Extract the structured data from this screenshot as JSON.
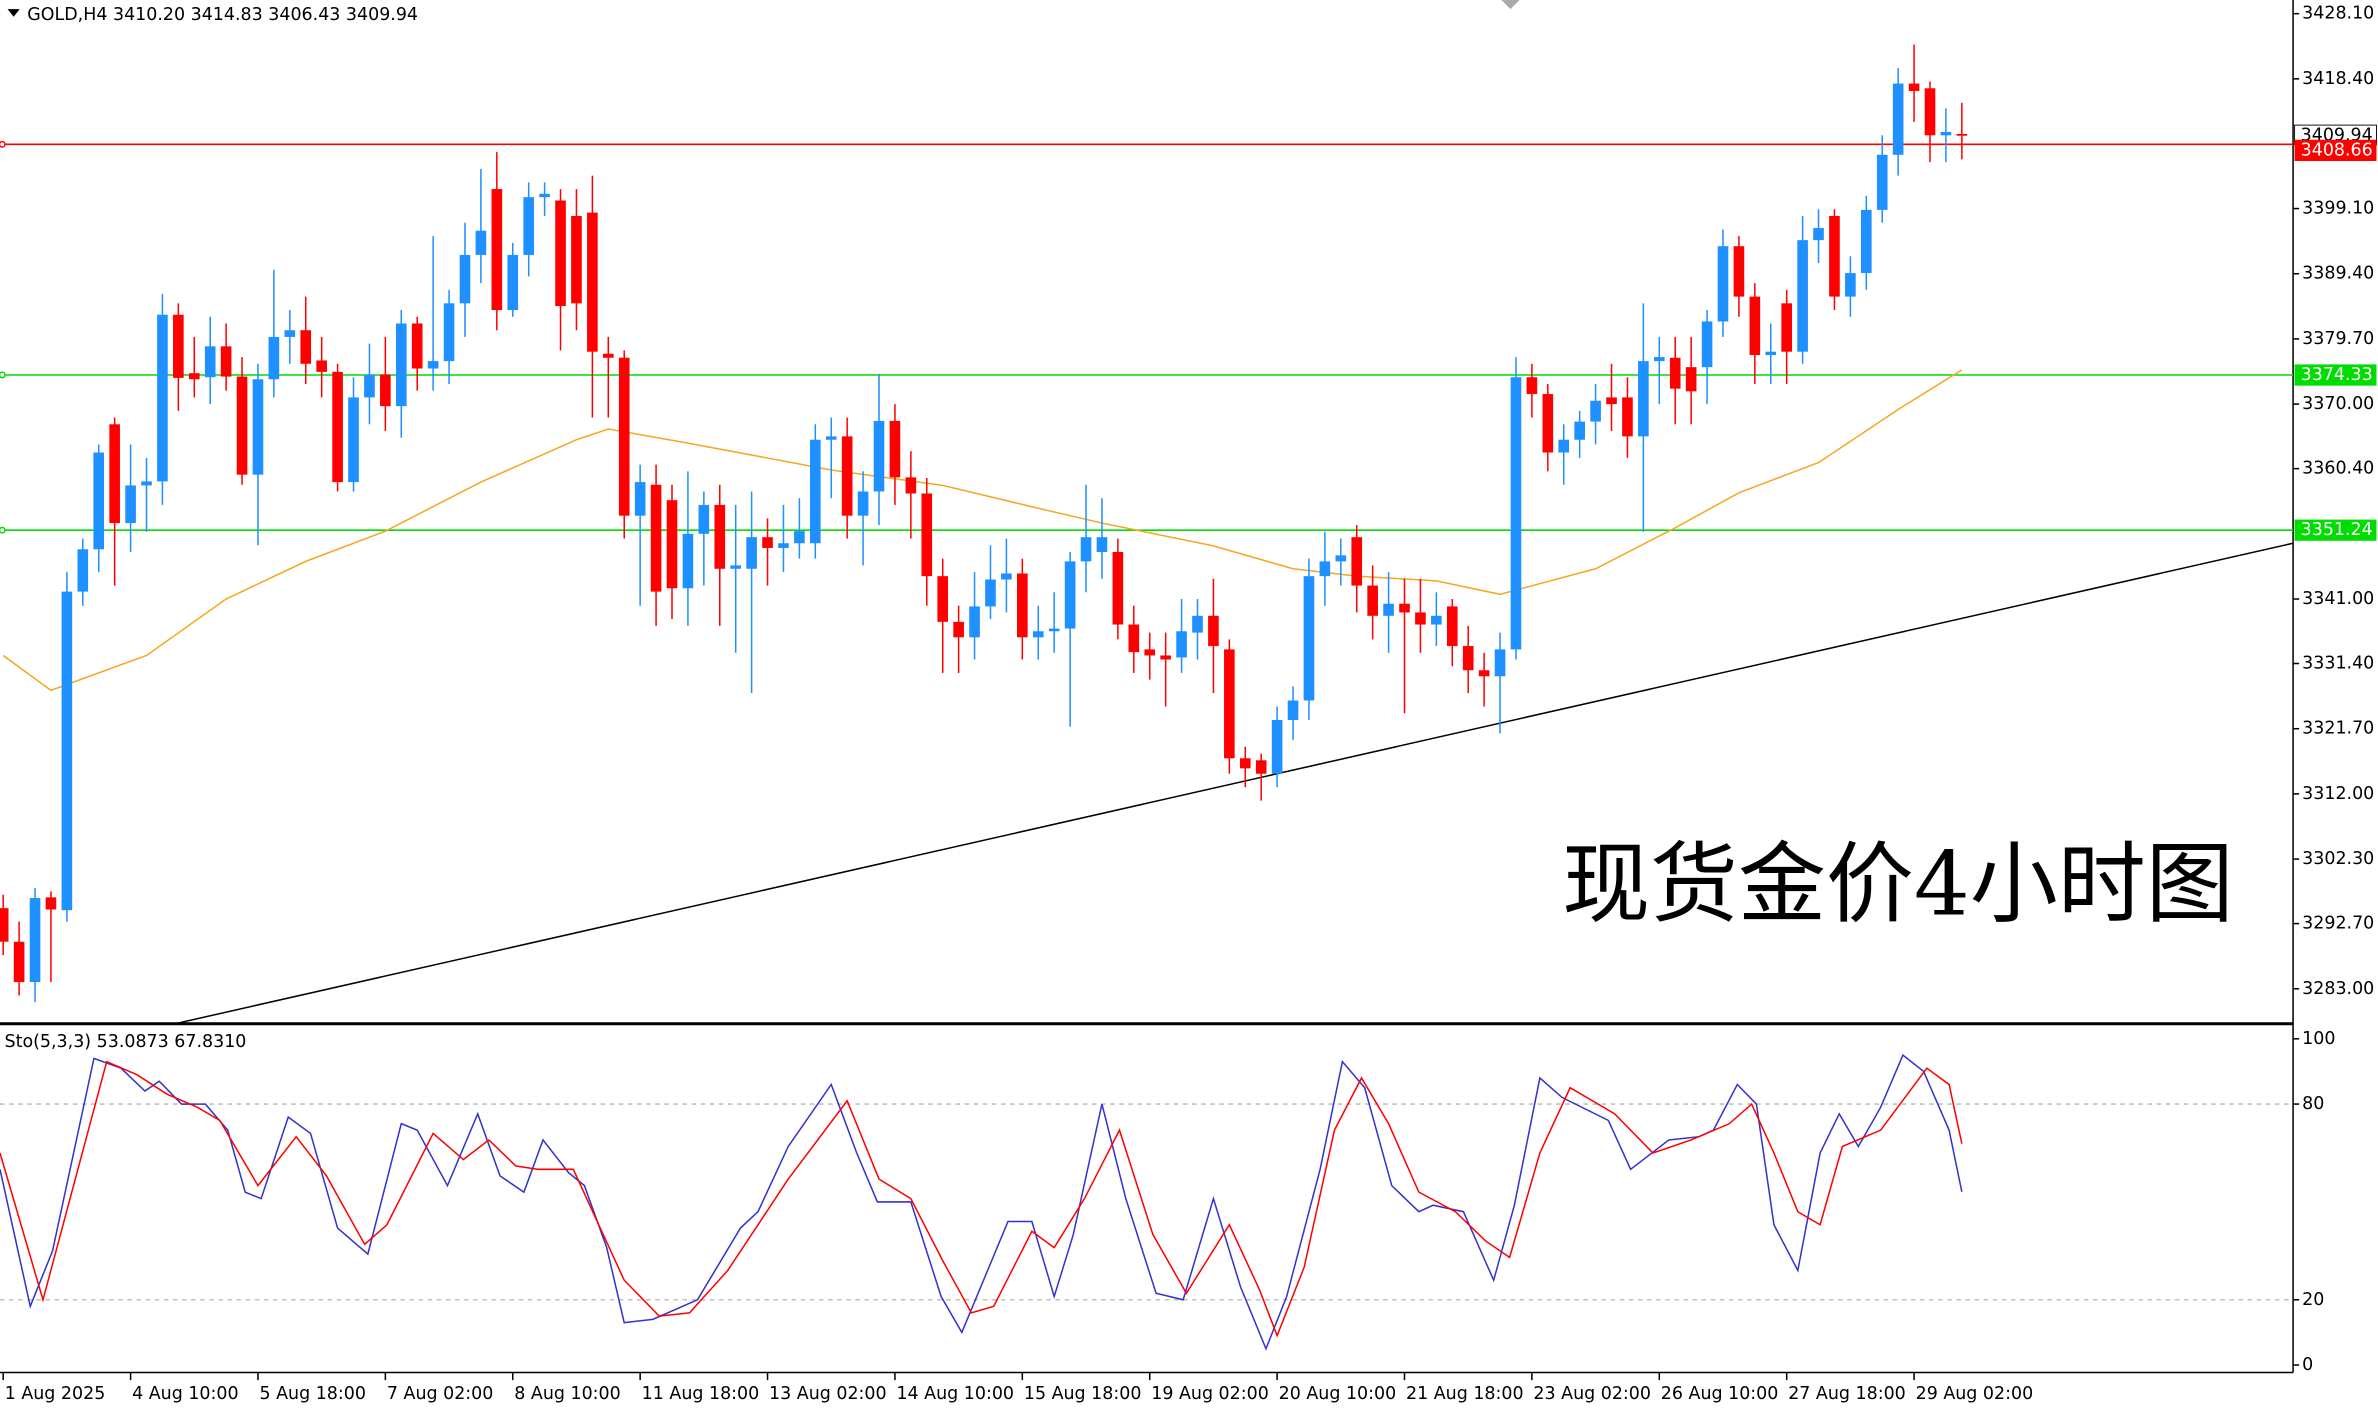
{
  "chart_data": [
    {
      "type": "candlestick",
      "title": "GOLD,H4  3410.20 3414.83 3406.43 3409.94",
      "annotation": "现货金价4小时图",
      "open": [
        3295,
        3290,
        3284,
        3296.6,
        3294.7,
        3342.1,
        3348.4,
        3367,
        3352.3,
        3357.9,
        3358.5,
        3383.3,
        3374.6,
        3374,
        3378.6,
        3374.1,
        3359.5,
        3373.7,
        3380,
        3381,
        3376.5,
        3374.8,
        3358.4,
        3371,
        3374.4,
        3369.7,
        3382,
        3375.3,
        3376.4,
        3385,
        3392.2,
        3402,
        3384,
        3392.2,
        3400.8,
        3400.3,
        3398,
        3398.5,
        3377.5,
        3376.9,
        3353.4,
        3358,
        3355.7,
        3342.6,
        3350.7,
        3355,
        3345.5,
        3345.5,
        3350.2,
        3348.6,
        3349.3,
        3349.3,
        3364.7,
        3365.2,
        3353.4,
        3357,
        3367.5,
        3359.1,
        3356.7,
        3344.4,
        3337.6,
        3335.3,
        3339.9,
        3343.9,
        3344.8,
        3335.3,
        3336.2,
        3336.6,
        3346.6,
        3348,
        3348,
        3337.2,
        3333.5,
        3332.6,
        3332.3,
        3336,
        3338.5,
        3333.5,
        3317.3,
        3317,
        3315,
        3323,
        3325.9,
        3344.4,
        3346.6,
        3350.2,
        3343,
        3338.5,
        3340.3,
        3339,
        3337.2,
        3339.9,
        3334,
        3330.4,
        3329.5,
        3333.5,
        3374,
        3371.5,
        3362.8,
        3364.7,
        3367.4,
        3371,
        3371,
        3365.2,
        3376.4,
        3376.9,
        3375.5,
        3375.5,
        3382.3,
        3393.5,
        3386,
        3377.3,
        3385,
        3377.8,
        3394.4,
        3398,
        3386,
        3389.5,
        3398.9,
        3407.1,
        3417.7,
        3417,
        3410,
        3410.2
      ],
      "high": [
        3297,
        3293,
        3298,
        3297.5,
        3345,
        3350,
        3364,
        3368,
        3364,
        3362,
        3386.4,
        3385,
        3380,
        3383,
        3382,
        3377,
        3376,
        3390,
        3384,
        3386,
        3380,
        3376,
        3374,
        3379,
        3380,
        3384,
        3383,
        3395,
        3387,
        3397,
        3405,
        3407.5,
        3394,
        3403,
        3403,
        3402,
        3402,
        3404,
        3380,
        3378,
        3361,
        3361,
        3358,
        3360,
        3357,
        3358,
        3355,
        3357,
        3353,
        3355,
        3356,
        3367,
        3368,
        3368,
        3360,
        3374.5,
        3370,
        3363,
        3359,
        3347,
        3340,
        3345,
        3349,
        3350,
        3347,
        3340,
        3342,
        3348,
        3358,
        3356,
        3350,
        3340,
        3336,
        3336,
        3341,
        3341,
        3344,
        3335,
        3319,
        3318,
        3325,
        3328,
        3347,
        3351,
        3350,
        3352,
        3346,
        3345,
        3344,
        3344,
        3342,
        3341,
        3337,
        3333,
        3336,
        3377,
        3376,
        3373,
        3367,
        3369,
        3373,
        3376,
        3374,
        3385,
        3380,
        3380,
        3380,
        3384,
        3396,
        3395,
        3388,
        3382,
        3387,
        3398,
        3399,
        3399,
        3392,
        3401,
        3410,
        3420,
        3423.5,
        3418,
        3414,
        3414.83
      ],
      "low": [
        3288,
        3282,
        3281,
        3284,
        3293,
        3340,
        3345,
        3343,
        3348,
        3351,
        3355,
        3369,
        3371,
        3370,
        3372,
        3358,
        3349,
        3371,
        3376,
        3373,
        3371,
        3357,
        3357,
        3367,
        3366,
        3365,
        3372,
        3372,
        3373,
        3380,
        3388,
        3381,
        3383,
        3389,
        3398,
        3378,
        3381,
        3368,
        3368,
        3350,
        3340,
        3337,
        3338,
        3337,
        3343,
        3337,
        3333,
        3327,
        3343,
        3345,
        3347,
        3347,
        3356,
        3350,
        3346,
        3352,
        3355,
        3350,
        3340,
        3330,
        3330,
        3332,
        3338,
        3339,
        3332,
        3332,
        3333,
        3322,
        3342,
        3344,
        3335,
        3330,
        3329,
        3325,
        3330,
        3332,
        3327,
        3315,
        3313,
        3311,
        3313,
        3320,
        3323,
        3340,
        3343,
        3339,
        3335,
        3333,
        3324,
        3333,
        3334,
        3331,
        3327,
        3325,
        3321,
        3332,
        3368,
        3360,
        3358,
        3362,
        3364,
        3366,
        3362,
        3351,
        3370,
        3367,
        3367,
        3370,
        3380,
        3383,
        3373,
        3373,
        3373,
        3376,
        3391,
        3384,
        3383,
        3387,
        3397,
        3404,
        3412,
        3406,
        3406,
        3406.43
      ],
      "close": [
        3290,
        3284,
        3296.5,
        3294.8,
        3342.1,
        3348.4,
        3362.8,
        3352.3,
        3357.9,
        3358.5,
        3383.3,
        3373.9,
        3373.7,
        3378.6,
        3374.1,
        3359.5,
        3373.7,
        3380,
        3381,
        3376,
        3374.8,
        3358.4,
        3371,
        3374.4,
        3369.7,
        3382,
        3375.3,
        3376.4,
        3385,
        3392.2,
        3395.8,
        3384,
        3392.2,
        3400.8,
        3401.3,
        3384.6,
        3385,
        3377.8,
        3376.9,
        3353.4,
        3358.4,
        3342.1,
        3342.6,
        3350.7,
        3355,
        3345.5,
        3346,
        3350.2,
        3348.6,
        3349.3,
        3351.1,
        3364.7,
        3365.2,
        3353.4,
        3357,
        3367.5,
        3359.1,
        3356.7,
        3344.4,
        3337.6,
        3335.3,
        3339.9,
        3343.9,
        3344.8,
        3335.3,
        3336.2,
        3336.6,
        3346.6,
        3350.2,
        3350.2,
        3337.2,
        3333.1,
        3332.6,
        3332,
        3336.2,
        3338.5,
        3334,
        3317.3,
        3315.8,
        3315,
        3323,
        3325.9,
        3344.4,
        3346.6,
        3347.5,
        3343,
        3338.5,
        3340.3,
        3339,
        3337.2,
        3338.5,
        3334,
        3330.4,
        3329.5,
        3333.5,
        3374,
        3371.5,
        3362.8,
        3364.7,
        3367.4,
        3370.5,
        3370,
        3365.2,
        3376.4,
        3377,
        3372.3,
        3371.9,
        3382.3,
        3393.5,
        3386,
        3377.3,
        3377.8,
        3377.8,
        3394.4,
        3396.2,
        3386,
        3389.5,
        3398.9,
        3407.1,
        3417.7,
        3416.6,
        3410,
        3410.5,
        3409.94
      ],
      "up_color": "#1e90ff",
      "down_color": "#ff0000",
      "xlim": [
        -0.2,
        143.8
      ],
      "xticks": [
        {
          "value": 0,
          "label": "1 Aug 2025"
        },
        {
          "value": 8,
          "label": "4 Aug 10:00"
        },
        {
          "value": 16,
          "label": "5 Aug 18:00"
        },
        {
          "value": 24,
          "label": "7 Aug 02:00"
        },
        {
          "value": 32,
          "label": "8 Aug 10:00"
        },
        {
          "value": 40,
          "label": "11 Aug 18:00"
        },
        {
          "value": 48,
          "label": "13 Aug 02:00"
        },
        {
          "value": 56,
          "label": "14 Aug 10:00"
        },
        {
          "value": 64,
          "label": "15 Aug 18:00"
        },
        {
          "value": 72,
          "label": "19 Aug 02:00"
        },
        {
          "value": 80,
          "label": "20 Aug 10:00"
        },
        {
          "value": 88,
          "label": "21 Aug 18:00"
        },
        {
          "value": 96,
          "label": "23 Aug 02:00"
        },
        {
          "value": 104,
          "label": "26 Aug 10:00"
        },
        {
          "value": 112,
          "label": "27 Aug 18:00"
        },
        {
          "value": 120,
          "label": "29 Aug 02:00"
        }
      ],
      "ylim": [
        3277.8,
        3430.13
      ],
      "yticks": [
        {
          "value": 3428.1,
          "label": "3428.10"
        },
        {
          "value": 3418.4,
          "label": "3418.40"
        },
        {
          "value": 3399.1,
          "label": "3399.10"
        },
        {
          "value": 3389.4,
          "label": "3389.40"
        },
        {
          "value": 3379.7,
          "label": "3379.70"
        },
        {
          "value": 3370,
          "label": "3370.00"
        },
        {
          "value": 3360.4,
          "label": "3360.40"
        },
        {
          "value": 3341,
          "label": "3341.00"
        },
        {
          "value": 3331.4,
          "label": "3331.40"
        },
        {
          "value": 3321.7,
          "label": "3321.70"
        },
        {
          "value": 3312,
          "label": "3312.00"
        },
        {
          "value": 3302.3,
          "label": "3302.30"
        },
        {
          "value": 3292.7,
          "label": "3292.70"
        },
        {
          "value": 3283,
          "label": "3283.00"
        }
      ],
      "current_price": 3409.94,
      "levels": [
        {
          "value": 3408.66,
          "color": "#ff0000"
        },
        {
          "value": 3374.33,
          "color": "#00dd00"
        },
        {
          "value": 3351.24,
          "color": "#00dd00"
        }
      ],
      "ma": {
        "color": "#f5a623",
        "x": [
          0,
          3,
          9,
          14,
          19,
          24,
          30,
          36,
          38,
          43,
          52,
          59,
          65,
          69,
          76,
          81,
          85,
          90,
          94,
          100,
          105,
          109,
          114,
          119,
          123
        ],
        "values": [
          3332.6,
          3327.4,
          3332.6,
          3341,
          3346.6,
          3351.1,
          3358.4,
          3364.7,
          3366.3,
          3364.2,
          3360.2,
          3357.9,
          3354.5,
          3352.3,
          3348.9,
          3345.5,
          3344.4,
          3343.7,
          3341.7,
          3345.5,
          3351.6,
          3356.8,
          3361.3,
          3369.2,
          3375.1
        ]
      },
      "trendline": {
        "color": "#000000",
        "x": [
          10.8,
          143.8
        ],
        "values": [
          3277.8,
          3349.3
        ]
      }
    },
    {
      "type": "line",
      "title": "Sto(5,3,3) 53.0873 67.8310",
      "xlim": [
        -0.2,
        143.8
      ],
      "ylim": [
        -2.3,
        103.7
      ],
      "yticks": [
        100,
        80,
        20,
        0
      ],
      "levels": [
        80,
        20
      ],
      "series": [
        {
          "color": "#3333cc",
          "x": [
            -0.2,
            1.7,
            3.1,
            5.7,
            7.4,
            8.9,
            9.8,
            11.2,
            12.7,
            14.1,
            15.2,
            16.2,
            17.9,
            19.3,
            21,
            22.9,
            25,
            26,
            27.9,
            29.8,
            31.2,
            32.7,
            33.9,
            35.5,
            36.5,
            37.9,
            39,
            40.8,
            43.6,
            46.3,
            47.4,
            49.3,
            52,
            53.6,
            54.9,
            57,
            58.9,
            60.2,
            63.1,
            64.6,
            66,
            67.2,
            69,
            70.5,
            72.4,
            74.1,
            76,
            77.7,
            79.3,
            80.6,
            82.7,
            84.1,
            85.5,
            87.2,
            88.9,
            89.8,
            91.7,
            93.6,
            94.9,
            96.5,
            97.9,
            100.8,
            102.2,
            104.6,
            106.5,
            107.4,
            108.9,
            110.1,
            111.2,
            112.7,
            114.1,
            115.3,
            116.5,
            117.9,
            119.3,
            120.6,
            122.2,
            123
          ],
          "values": [
            60,
            18,
            35,
            94,
            91,
            84,
            87,
            80,
            80,
            72,
            53,
            51,
            76,
            71,
            42,
            34,
            74,
            72,
            55,
            77,
            58,
            53,
            69,
            59,
            55,
            36,
            13,
            14,
            20,
            42,
            47,
            67,
            86,
            65,
            50,
            50,
            21,
            10,
            44,
            44,
            21,
            40,
            80,
            51,
            22,
            20,
            51,
            24,
            5,
            21,
            60,
            93,
            85,
            55,
            47,
            49,
            47,
            26,
            49,
            88,
            82,
            75,
            60,
            69,
            70,
            72,
            86,
            80,
            43,
            29,
            65,
            77,
            67,
            79,
            95,
            90,
            72,
            53.0873
          ]
        },
        {
          "color": "#ff0000",
          "x": [
            -0.2,
            2.5,
            6.5,
            8.4,
            10.3,
            12.2,
            13.6,
            16,
            18.4,
            20.3,
            22.7,
            24.1,
            27,
            28.9,
            30.5,
            32.2,
            33.6,
            35.8,
            37.4,
            39,
            41.2,
            43.1,
            45.5,
            49.3,
            53,
            55,
            57,
            59,
            60.8,
            62.2,
            64.6,
            66,
            67.9,
            70.1,
            72.2,
            74.3,
            77,
            78.9,
            80,
            81.7,
            83.6,
            85.3,
            87,
            88.9,
            91.2,
            93.1,
            94.6,
            96.5,
            98.4,
            101.2,
            103.6,
            106,
            108.4,
            109.8,
            111.2,
            112.7,
            114.1,
            115.5,
            117.9,
            120.8,
            122.2,
            123
          ],
          "values": [
            65,
            20,
            93,
            89,
            83,
            79,
            75,
            55,
            70,
            58,
            37,
            43,
            71,
            63,
            69,
            61,
            60,
            60,
            43,
            26,
            15,
            16,
            29,
            57,
            81,
            57,
            51,
            32,
            16,
            18,
            41,
            36,
            51,
            72,
            40,
            22,
            43,
            23,
            9,
            30,
            72,
            88,
            74,
            53,
            47,
            38,
            33,
            65,
            85,
            77,
            65,
            69,
            74,
            80,
            65,
            47,
            43,
            67,
            72,
            91,
            86,
            67.831
          ]
        }
      ]
    }
  ]
}
